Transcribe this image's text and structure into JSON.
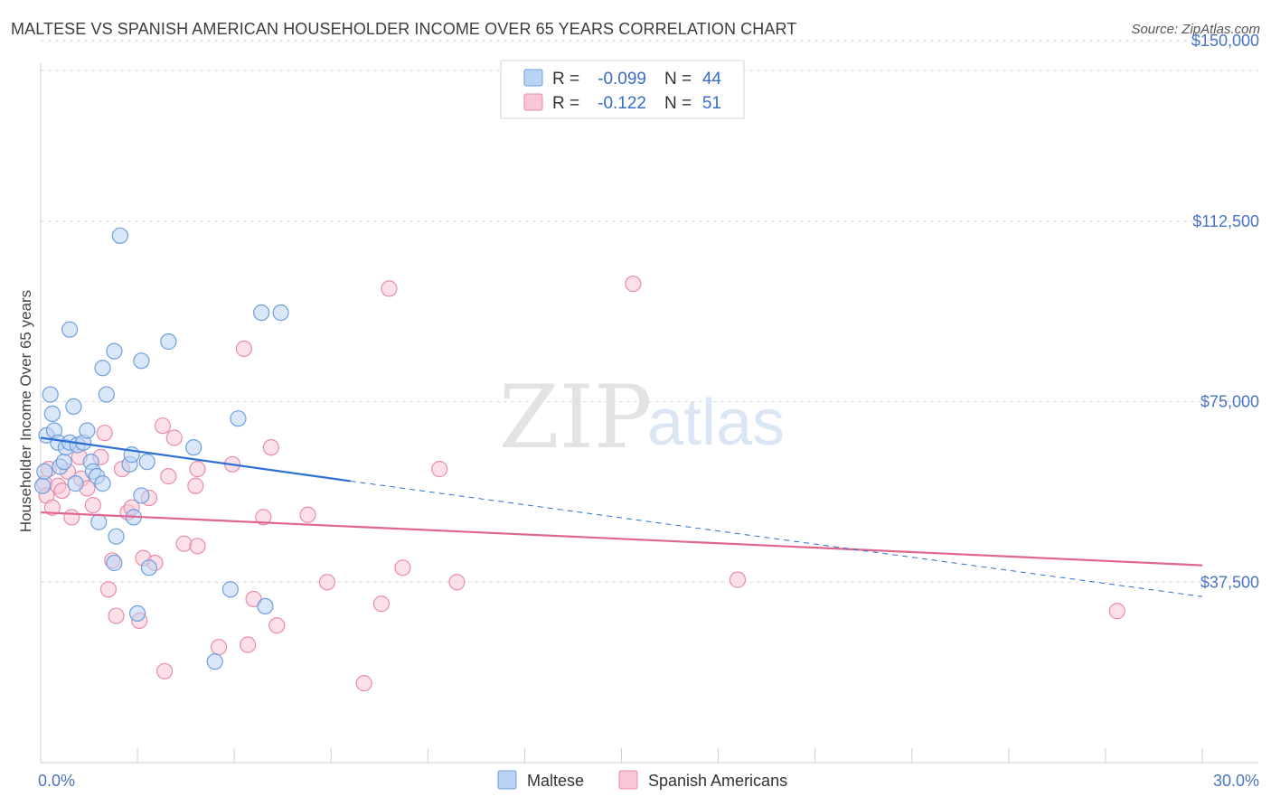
{
  "title": "MALTESE VS SPANISH AMERICAN HOUSEHOLDER INCOME OVER 65 YEARS CORRELATION CHART",
  "source": "Source: ZipAtlas.com",
  "watermark": {
    "zip": "ZIP",
    "atlas": "atlas"
  },
  "colors": {
    "maltese_fill": "#b9d3f4",
    "maltese_stroke": "#6f9fdd",
    "maltese_line": "#2f6fd2",
    "spanish_fill": "#f8c6d6",
    "spanish_stroke": "#e98cab",
    "spanish_line": "#e0668f",
    "grid": "#d9d9d9",
    "axis_label": "#4a74c4"
  },
  "legend": {
    "rows": [
      {
        "r_label": "R =",
        "r_value": "-0.099",
        "n_label": "N =",
        "n_value": "44"
      },
      {
        "r_label": "R =",
        "r_value": "-0.122",
        "n_label": "N =",
        "n_value": "51"
      }
    ]
  },
  "chart_data": {
    "type": "scatter",
    "title": "MALTESE VS SPANISH AMERICAN HOUSEHOLDER INCOME OVER 65 YEARS CORRELATION CHART",
    "xlabel": "",
    "ylabel": "Householder Income Over 65 years",
    "xlim": [
      0,
      30
    ],
    "ylim": [
      0,
      155000
    ],
    "x_tick_labels": [
      "0.0%",
      "30.0%"
    ],
    "y_ticks": [
      37500,
      75000,
      112500,
      150000
    ],
    "y_tick_labels": [
      "$37,500",
      "$75,000",
      "$112,500",
      "$150,000"
    ],
    "grid": true,
    "series": [
      {
        "name": "Maltese",
        "r": -0.099,
        "n": 44,
        "trend_solid": {
          "x": [
            0.0,
            8.0
          ],
          "y": [
            67500,
            58500
          ]
        },
        "trend_dashed": {
          "x": [
            8.0,
            30.0
          ],
          "y": [
            58500,
            34500
          ]
        },
        "points": [
          [
            0.15,
            68000
          ],
          [
            0.25,
            76500
          ],
          [
            0.3,
            72500
          ],
          [
            0.35,
            69000
          ],
          [
            0.45,
            66500
          ],
          [
            0.5,
            61500
          ],
          [
            0.6,
            62500
          ],
          [
            0.65,
            65500
          ],
          [
            0.75,
            90000
          ],
          [
            0.75,
            66500
          ],
          [
            0.85,
            74000
          ],
          [
            0.9,
            58000
          ],
          [
            0.95,
            66000
          ],
          [
            1.1,
            66500
          ],
          [
            1.2,
            69000
          ],
          [
            1.3,
            62500
          ],
          [
            1.35,
            60500
          ],
          [
            1.45,
            59500
          ],
          [
            1.5,
            50000
          ],
          [
            1.6,
            58000
          ],
          [
            1.6,
            82000
          ],
          [
            1.7,
            76500
          ],
          [
            1.9,
            85500
          ],
          [
            1.9,
            41500
          ],
          [
            1.95,
            47000
          ],
          [
            2.05,
            109500
          ],
          [
            2.3,
            62000
          ],
          [
            2.35,
            64000
          ],
          [
            2.4,
            51000
          ],
          [
            2.5,
            31000
          ],
          [
            2.6,
            83500
          ],
          [
            2.6,
            55500
          ],
          [
            2.75,
            62500
          ],
          [
            2.8,
            40500
          ],
          [
            3.3,
            87500
          ],
          [
            3.95,
            65500
          ],
          [
            4.5,
            21000
          ],
          [
            4.9,
            36000
          ],
          [
            5.1,
            71500
          ],
          [
            5.7,
            93500
          ],
          [
            5.8,
            32500
          ],
          [
            6.2,
            93500
          ],
          [
            0.05,
            57500
          ],
          [
            0.1,
            60500
          ]
        ]
      },
      {
        "name": "Spanish Americans",
        "r": -0.122,
        "n": 51,
        "trend_solid": {
          "x": [
            0.0,
            30.0
          ],
          "y": [
            52000,
            41000
          ]
        },
        "points": [
          [
            0.1,
            58000
          ],
          [
            0.15,
            55500
          ],
          [
            0.2,
            61000
          ],
          [
            0.3,
            53000
          ],
          [
            0.45,
            57500
          ],
          [
            0.55,
            56500
          ],
          [
            0.7,
            60500
          ],
          [
            0.8,
            51000
          ],
          [
            1.0,
            63500
          ],
          [
            1.05,
            59000
          ],
          [
            1.2,
            57000
          ],
          [
            1.35,
            53500
          ],
          [
            1.55,
            63500
          ],
          [
            1.65,
            68500
          ],
          [
            1.75,
            36000
          ],
          [
            1.85,
            42000
          ],
          [
            1.95,
            30500
          ],
          [
            2.1,
            61000
          ],
          [
            2.25,
            52000
          ],
          [
            2.35,
            53000
          ],
          [
            2.55,
            29500
          ],
          [
            2.65,
            42500
          ],
          [
            2.8,
            55000
          ],
          [
            2.95,
            41500
          ],
          [
            3.15,
            70000
          ],
          [
            3.2,
            19000
          ],
          [
            3.3,
            59500
          ],
          [
            3.45,
            67500
          ],
          [
            3.7,
            45500
          ],
          [
            4.05,
            45000
          ],
          [
            4.0,
            57500
          ],
          [
            4.05,
            61000
          ],
          [
            4.6,
            24000
          ],
          [
            4.95,
            62000
          ],
          [
            5.25,
            86000
          ],
          [
            5.35,
            24500
          ],
          [
            5.5,
            34000
          ],
          [
            5.75,
            51000
          ],
          [
            5.95,
            65500
          ],
          [
            6.1,
            28500
          ],
          [
            6.9,
            51500
          ],
          [
            7.4,
            37500
          ],
          [
            8.35,
            16500
          ],
          [
            8.8,
            33000
          ],
          [
            9.0,
            98500
          ],
          [
            9.35,
            40500
          ],
          [
            10.3,
            61000
          ],
          [
            10.75,
            37500
          ],
          [
            15.3,
            99500
          ],
          [
            18.0,
            38000
          ],
          [
            27.8,
            31500
          ]
        ]
      }
    ]
  },
  "bottom_legend": [
    {
      "label": "Maltese"
    },
    {
      "label": "Spanish Americans"
    }
  ]
}
